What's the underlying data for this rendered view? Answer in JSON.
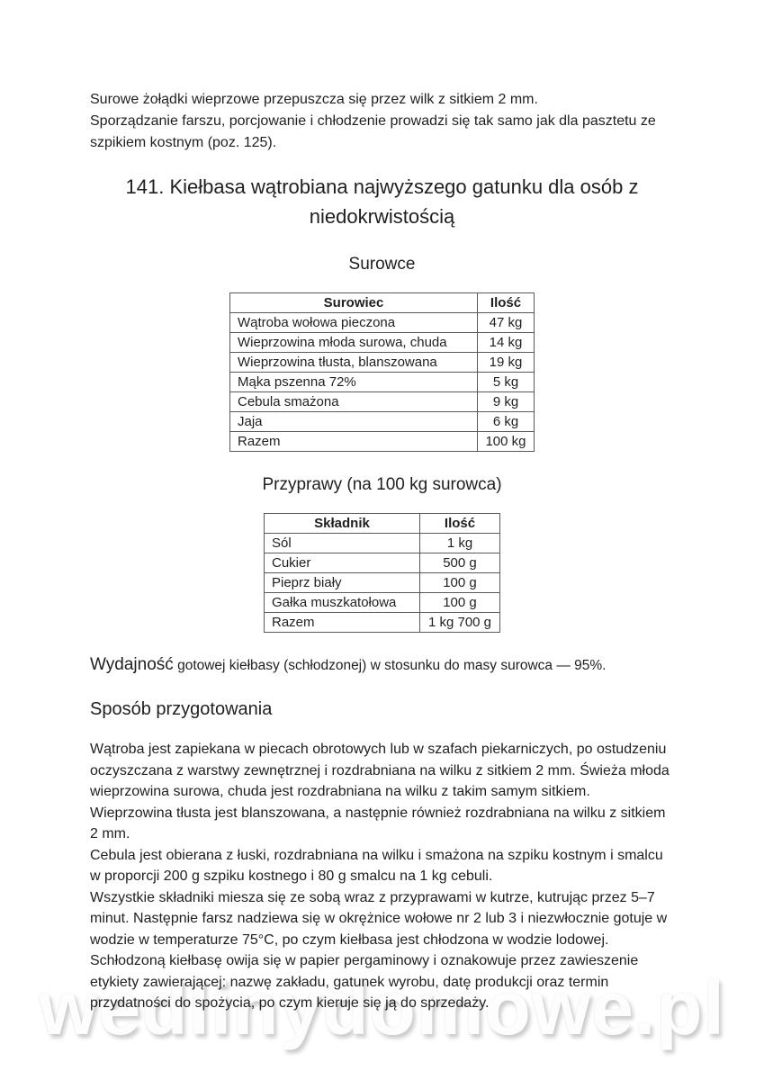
{
  "intro": {
    "line1": "Surowe żołądki wieprzowe przepuszcza się przez wilk z sitkiem 2 mm.",
    "line2": "Sporządzanie farszu, porcjowanie i chłodzenie prowadzi się tak samo jak dla pasztetu ze szpikiem kostnym (poz. 125)."
  },
  "title": "141. Kiełbasa wątrobiana najwyższego gatunku dla osób z niedokrwistością",
  "sections": {
    "surowce": "Surowce",
    "przyprawy": "Przyprawy (na 100 kg surowca)",
    "sposob": "Sposób przygotowania"
  },
  "table_surowce": {
    "headers": [
      "Surowiec",
      "Ilość"
    ],
    "rows": [
      [
        "Wątroba wołowa pieczona",
        "47 kg"
      ],
      [
        "Wieprzowina młoda surowa, chuda",
        "14 kg"
      ],
      [
        "Wieprzowina tłusta, blanszowana",
        "19 kg"
      ],
      [
        "Mąka pszenna 72%",
        "5 kg"
      ],
      [
        "Cebula smażona",
        "9 kg"
      ],
      [
        "Jaja",
        "6 kg"
      ],
      [
        "Razem",
        "100 kg"
      ]
    ]
  },
  "table_przyprawy": {
    "headers": [
      "Składnik",
      "Ilość"
    ],
    "rows": [
      [
        "Sól",
        "1 kg"
      ],
      [
        "Cukier",
        "500 g"
      ],
      [
        "Pieprz biały",
        "100 g"
      ],
      [
        "Gałka muszkatołowa",
        "100 g"
      ],
      [
        "Razem",
        "1 kg 700 g"
      ]
    ]
  },
  "yield": {
    "lead": "Wydajność",
    "rest": " gotowej kiełbasy (schłodzonej) w stosunku do masy surowca — 95%."
  },
  "paragraphs": [
    "Wątroba jest zapiekana w piecach obrotowych lub w szafach piekarniczych, po ostudzeniu oczyszczana z warstwy zewnętrznej i rozdrabniana na wilku z sitkiem 2 mm. Świeża młoda wieprzowina surowa, chuda jest rozdrabniana na wilku z takim samym sitkiem. Wieprzowina tłusta jest blanszowana, a następnie również rozdrabniana na wilku z sitkiem 2 mm.",
    "Cebula jest obierana z łuski, rozdrabniana na wilku i smażona na szpiku kostnym i smalcu w proporcji 200 g szpiku kostnego i 80 g smalcu na 1 kg cebuli.",
    "Wszystkie składniki miesza się ze sobą wraz z przyprawami w kutrze, kutrując przez 5–7 minut. Następnie farsz nadziewa się w okrężnice wołowe nr 2 lub 3 i niezwłocznie gotuje w wodzie w temperaturze 75°C, po czym kiełbasa jest chłodzona w wodzie lodowej.",
    "Schłodzoną kiełbasę owija się w papier pergaminowy i oznakowuje przez zawieszenie etykiety zawierającej: nazwę zakładu, gatunek wyrobu, datę produkcji oraz termin przydatności do spożycia, po czym kieruje się ją do sprzedaży."
  ],
  "watermark": "wedlinydomowe.pl",
  "colors": {
    "text": "#1f1f1f",
    "table_border": "#5a5a5a",
    "watermark_shadow": "#cccccc"
  }
}
